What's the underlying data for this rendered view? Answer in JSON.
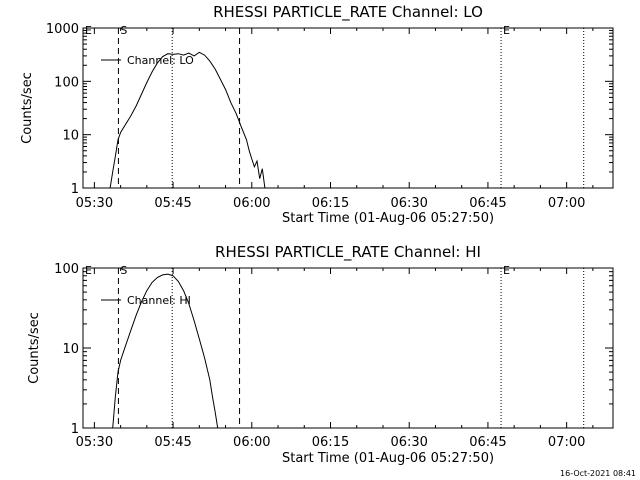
{
  "footer": {
    "timestamp": "16-Oct-2021 08:41"
  },
  "chart_data": [
    {
      "type": "line",
      "title": "RHESSI PARTICLE_RATE Channel: LO",
      "xlabel": "Start Time (01-Aug-06 05:27:50)",
      "ylabel": "Counts/sec",
      "xlim": [
        "05:27:50",
        "07:08:50"
      ],
      "ylim": [
        1,
        1000
      ],
      "yscale": "log",
      "xticks": [
        "05:30",
        "05:45",
        "06:00",
        "06:15",
        "06:30",
        "06:45",
        "07:00"
      ],
      "yticks": [
        "1",
        "10",
        "100",
        "1000"
      ],
      "legend": {
        "label": "Channel: LO",
        "position": "top-left"
      },
      "markers": [
        {
          "time": "05:27:50",
          "label": "E",
          "style": "dotted"
        },
        {
          "time": "05:34:35",
          "label": "S",
          "style": "dashed"
        },
        {
          "time": "05:44:50",
          "label": "",
          "style": "dotted"
        },
        {
          "time": "05:57:40",
          "label": "",
          "style": "dashed"
        },
        {
          "time": "06:47:30",
          "label": "E",
          "style": "dotted"
        },
        {
          "time": "07:03:15",
          "label": "",
          "style": "dotted"
        }
      ],
      "series": [
        {
          "values": [
            [
              "05:33:00",
              1
            ],
            [
              "05:33:30",
              2
            ],
            [
              "05:34:00",
              4
            ],
            [
              "05:34:30",
              8
            ],
            [
              "05:35:00",
              11
            ],
            [
              "05:36:00",
              16
            ],
            [
              "05:37:00",
              23
            ],
            [
              "05:38:00",
              35
            ],
            [
              "05:39:00",
              58
            ],
            [
              "05:40:00",
              95
            ],
            [
              "05:41:00",
              150
            ],
            [
              "05:42:00",
              220
            ],
            [
              "05:43:00",
              290
            ],
            [
              "05:44:00",
              330
            ],
            [
              "05:45:00",
              320
            ],
            [
              "05:46:00",
              330
            ],
            [
              "05:47:00",
              310
            ],
            [
              "05:48:00",
              340
            ],
            [
              "05:49:00",
              300
            ],
            [
              "05:50:00",
              350
            ],
            [
              "05:51:00",
              310
            ],
            [
              "05:52:00",
              240
            ],
            [
              "05:53:00",
              170
            ],
            [
              "05:54:00",
              110
            ],
            [
              "05:55:00",
              70
            ],
            [
              "05:56:00",
              40
            ],
            [
              "05:57:00",
              25
            ],
            [
              "05:58:00",
              14
            ],
            [
              "05:59:00",
              8
            ],
            [
              "05:59:30",
              5
            ],
            [
              "06:00:00",
              3.5
            ],
            [
              "06:00:30",
              2.5
            ],
            [
              "06:01:00",
              3.2
            ],
            [
              "06:01:30",
              1.5
            ],
            [
              "06:02:00",
              2.3
            ],
            [
              "06:02:30",
              1
            ]
          ]
        }
      ]
    },
    {
      "type": "line",
      "title": "RHESSI PARTICLE_RATE Channel: HI",
      "xlabel": "Start Time (01-Aug-06 05:27:50)",
      "ylabel": "Counts/sec",
      "xlim": [
        "05:27:50",
        "07:08:50"
      ],
      "ylim": [
        1,
        100
      ],
      "yscale": "log",
      "xticks": [
        "05:30",
        "05:45",
        "06:00",
        "06:15",
        "06:30",
        "06:45",
        "07:00"
      ],
      "yticks": [
        "1",
        "10",
        "100"
      ],
      "legend": {
        "label": "Channel: HI",
        "position": "top-left"
      },
      "markers": [
        {
          "time": "05:27:50",
          "label": "E",
          "style": "dotted"
        },
        {
          "time": "05:34:35",
          "label": "S",
          "style": "dashed"
        },
        {
          "time": "05:44:50",
          "label": "",
          "style": "dotted"
        },
        {
          "time": "05:57:40",
          "label": "",
          "style": "dashed"
        },
        {
          "time": "06:47:30",
          "label": "E",
          "style": "dotted"
        },
        {
          "time": "07:03:15",
          "label": "",
          "style": "dotted"
        }
      ],
      "series": [
        {
          "values": [
            [
              "05:33:30",
              1
            ],
            [
              "05:34:00",
              2.5
            ],
            [
              "05:34:30",
              5
            ],
            [
              "05:35:00",
              7
            ],
            [
              "05:36:00",
              11
            ],
            [
              "05:37:00",
              17
            ],
            [
              "05:38:00",
              26
            ],
            [
              "05:39:00",
              38
            ],
            [
              "05:40:00",
              52
            ],
            [
              "05:41:00",
              66
            ],
            [
              "05:42:00",
              76
            ],
            [
              "05:43:00",
              82
            ],
            [
              "05:44:00",
              84
            ],
            [
              "05:45:00",
              80
            ],
            [
              "05:46:00",
              68
            ],
            [
              "05:47:00",
              52
            ],
            [
              "05:48:00",
              36
            ],
            [
              "05:49:00",
              22
            ],
            [
              "05:50:00",
              13
            ],
            [
              "05:51:00",
              7.5
            ],
            [
              "05:52:00",
              4
            ],
            [
              "05:52:30",
              2.5
            ],
            [
              "05:53:00",
              1.6
            ],
            [
              "05:53:30",
              1
            ]
          ]
        }
      ]
    }
  ]
}
